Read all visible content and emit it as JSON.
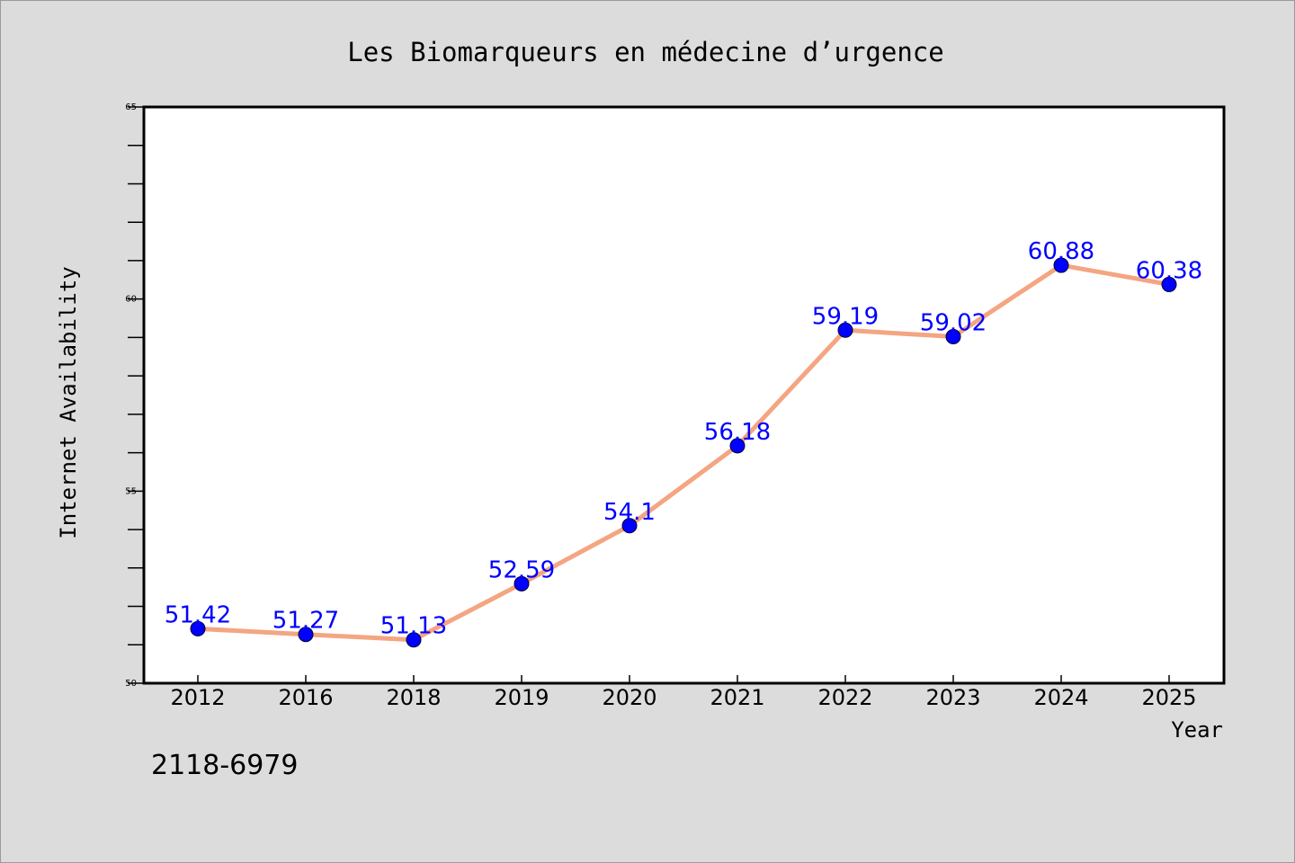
{
  "chart_data": {
    "type": "line",
    "title": "Les Biomarqueurs en médecine d’urgence",
    "xlabel": "Year",
    "ylabel": "Internet Availability",
    "categories": [
      "2012",
      "2016",
      "2018",
      "2019",
      "2020",
      "2021",
      "2022",
      "2023",
      "2024",
      "2025"
    ],
    "series": [
      {
        "values": [
          51.42,
          51.27,
          51.13,
          52.59,
          54.1,
          56.18,
          59.19,
          59.02,
          60.88,
          60.38
        ],
        "labels": [
          "51.42",
          "51.27",
          "51.13",
          "52.59",
          "54.1",
          "56.18",
          "59.19",
          "59.02",
          "60.88",
          "60.38"
        ],
        "line_color": "#f4a582",
        "marker_color": "#0000ff",
        "label_color": "#0000ff"
      }
    ],
    "ylim": [
      50,
      65
    ],
    "yticks": [
      "50",
      "55",
      "60",
      "65"
    ],
    "grid": false,
    "legend": "none"
  },
  "footer": {
    "code": "2118-6979"
  },
  "colors": {
    "background": "#dcdcdc",
    "plot_background": "#ffffff"
  }
}
